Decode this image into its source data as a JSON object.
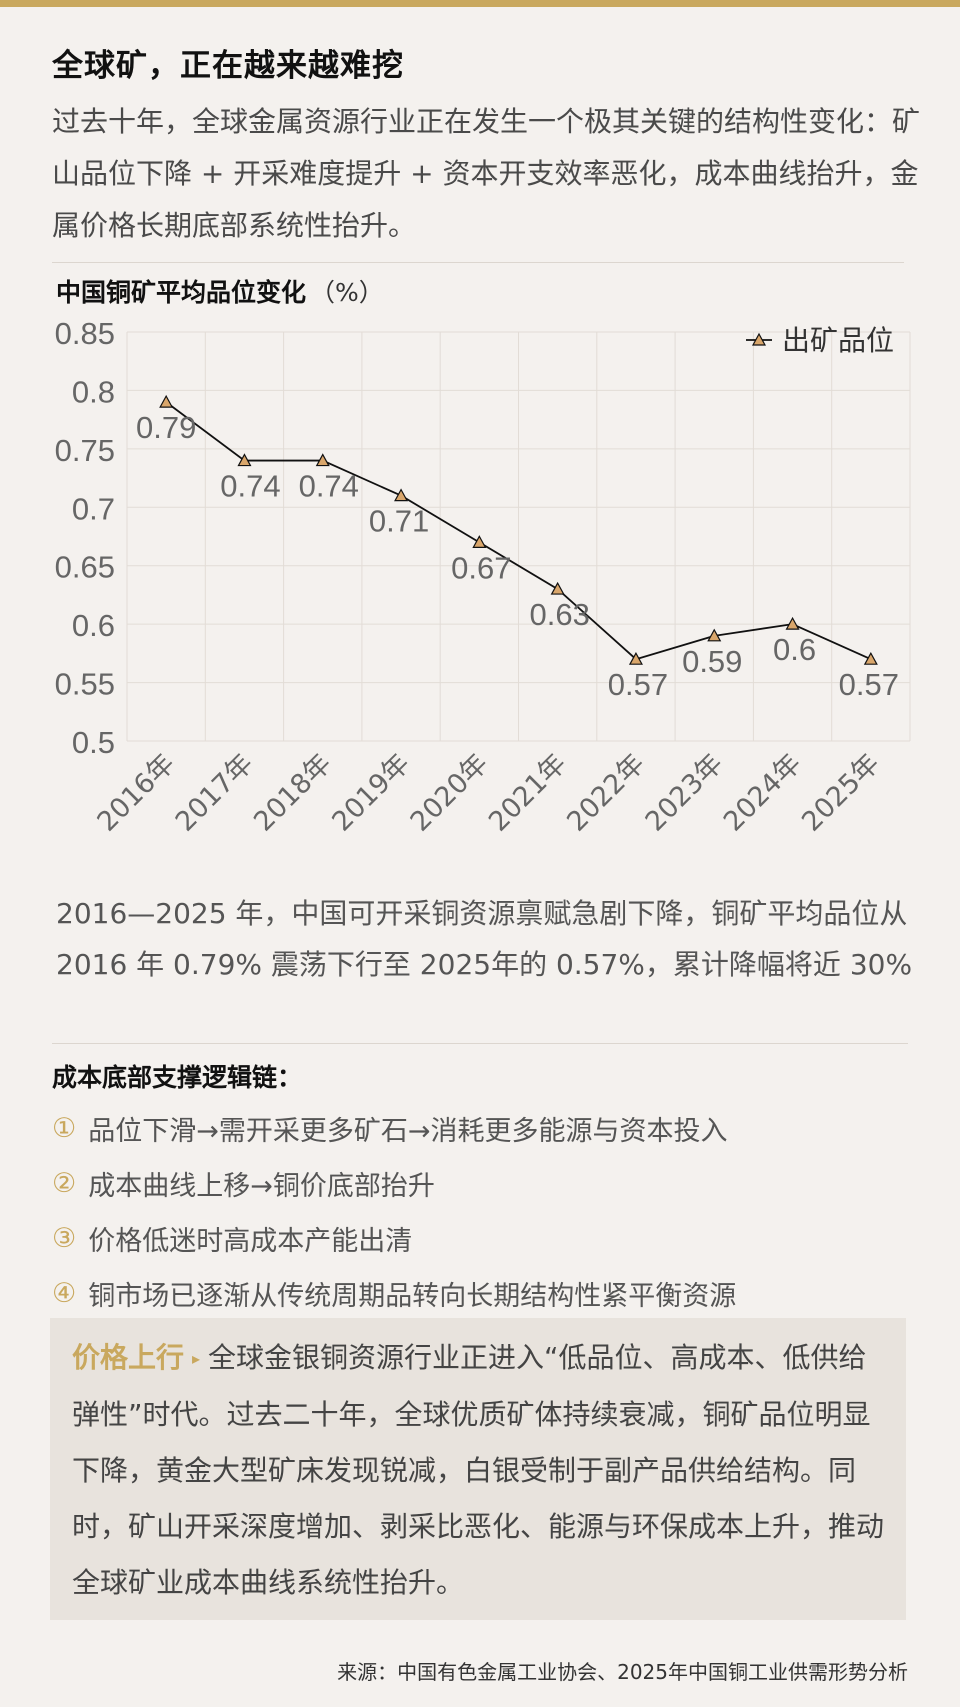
{
  "header": {
    "title": "全球矿，正在越来越难挖",
    "intro": "过去十年，全球金属资源行业正在发生一个极其关键的结构性变化：矿山品位下降 + 开采难度提升 + 资本开支效率恶化，成本曲线抬升，金属价格长期底部系统性抬升。"
  },
  "chart": {
    "title": "中国铜矿平均品位变化",
    "unit": "（%）"
  },
  "chart_data": {
    "type": "line",
    "categories": [
      "2016年",
      "2017年",
      "2018年",
      "2019年",
      "2020年",
      "2021年",
      "2022年",
      "2023年",
      "2024年",
      "2025年"
    ],
    "series": [
      {
        "name": "出矿品位",
        "values": [
          0.79,
          0.74,
          0.74,
          0.71,
          0.67,
          0.63,
          0.57,
          0.59,
          0.6,
          0.57
        ]
      }
    ],
    "data_labels": [
      "0.79",
      "0.74",
      "0.74",
      "0.71",
      "0.67",
      "0.63",
      "0.57",
      "0.59",
      "0.6",
      "0.57"
    ],
    "yticks": [
      "0.5",
      "0.55",
      "0.6",
      "0.65",
      "0.7",
      "0.75",
      "0.8",
      "0.85"
    ],
    "ylim": [
      0.5,
      0.85
    ],
    "grid": true,
    "legend_position": "top-right",
    "marker": "triangle",
    "colors": {
      "line": "#111111",
      "marker_fill": "#d9a66b",
      "grid": "#e2dcd6",
      "tick_text": "#666666"
    }
  },
  "summary": "2016—2025 年，中国可开采铜资源禀赋急剧下降，铜矿平均品位从 2016 年 0.79% 震荡下行至 2025年的 0.57%，累计降幅将近 30%",
  "logic_chain": {
    "title": "成本底部支撑逻辑链：",
    "items": [
      {
        "num": "①",
        "text": "品位下滑→需开采更多矿石→消耗更多能源与资本投入"
      },
      {
        "num": "②",
        "text": "成本曲线上移→铜价底部抬升"
      },
      {
        "num": "③",
        "text": "价格低迷时高成本产能出清"
      },
      {
        "num": "④",
        "text": "铜市场已逐渐从传统周期品转向长期结构性紧平衡资源"
      }
    ]
  },
  "callout": {
    "tag": "价格上行",
    "arrow_icon": "▸",
    "text": "全球金银铜资源行业正进入“低品位、高成本、低供给弹性”时代。过去二十年，全球优质矿体持续衰减，铜矿品位明显下降，黄金大型矿床发现锐减，白银受制于副产品供给结构。同时，矿山开采深度增加、剥采比恶化、能源与环保成本上升，推动全球矿业成本曲线系统性抬升。"
  },
  "source": "来源：中国有色金属工业协会、2025年中国铜工业供需形势分析",
  "colors": {
    "accent": "#c9a85e",
    "background": "#f4f1ee",
    "callout_bg": "#e8e3dd"
  }
}
